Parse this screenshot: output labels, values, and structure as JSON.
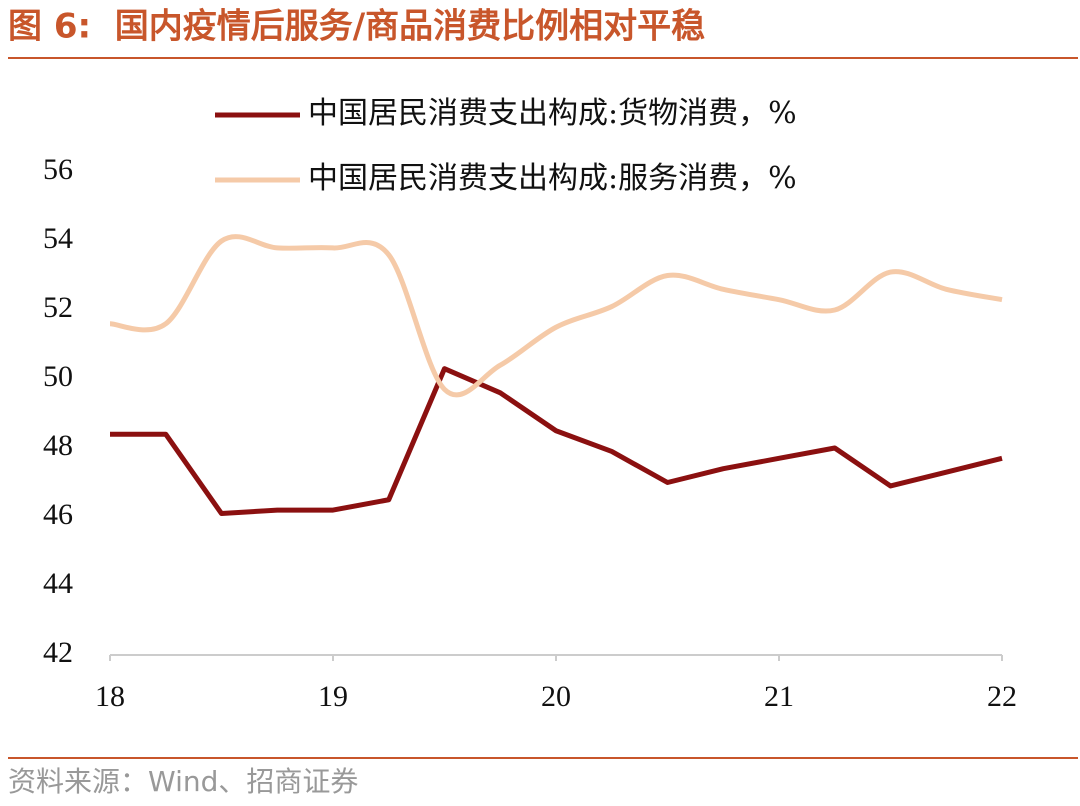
{
  "chart_data": {
    "type": "line",
    "title": "图 6:  国内疫情后服务/商品消费比例相对平稳",
    "source": "资料来源：Wind、招商证券",
    "x": [
      18,
      18.25,
      18.5,
      18.75,
      19,
      19.25,
      19.5,
      19.75,
      20,
      20.25,
      20.5,
      20.75,
      21,
      21.25,
      21.5,
      21.75,
      22
    ],
    "series": [
      {
        "name": "中国居民消费支出构成:货物消费，%",
        "color": "#8b1010",
        "smooth": false,
        "values": [
          48.4,
          48.4,
          46.1,
          46.2,
          46.2,
          46.5,
          50.3,
          49.6,
          48.5,
          47.9,
          47.0,
          47.4,
          47.7,
          48.0,
          46.9,
          47.3,
          47.7
        ]
      },
      {
        "name": "中国居民消费支出构成:服务消费，%",
        "color": "#f5caa8",
        "smooth": true,
        "values": [
          51.6,
          51.6,
          54.0,
          53.8,
          53.8,
          53.6,
          49.7,
          50.4,
          51.5,
          52.1,
          53.0,
          52.6,
          52.3,
          52.0,
          53.1,
          52.6,
          52.3
        ]
      }
    ],
    "xlim": [
      18,
      22
    ],
    "xticks": [
      18,
      19,
      20,
      21,
      22
    ],
    "ylim": [
      42,
      56
    ],
    "yticks": [
      42,
      44,
      46,
      48,
      50,
      52,
      54,
      56
    ],
    "grid": false,
    "legend": "top"
  }
}
